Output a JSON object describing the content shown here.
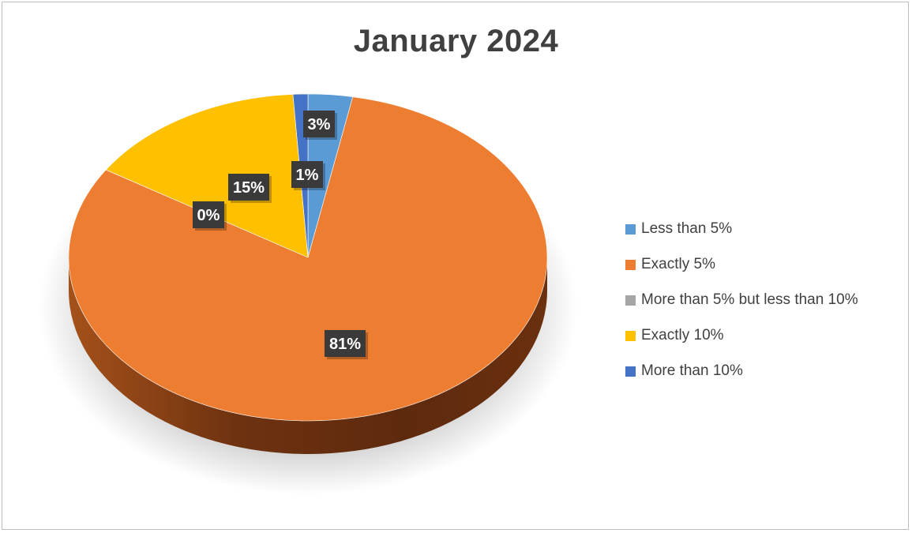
{
  "chart_data": {
    "type": "pie",
    "title": "January 2024",
    "legend_position": "right",
    "categories": [
      "Less than 5%",
      "Exactly 5%",
      "More than 5% but less than 10%",
      "Exactly 10%",
      "More than 10%"
    ],
    "values": [
      3,
      81,
      0,
      15,
      1
    ],
    "data_labels": [
      "3%",
      "81%",
      "0%",
      "15%",
      "1%"
    ],
    "colors": [
      "#5B9BD5",
      "#ED7D31",
      "#A5A5A5",
      "#FFC000",
      "#4472C4"
    ],
    "label_style": {
      "background": "#3a3a3a",
      "text_color": "#ffffff"
    }
  }
}
